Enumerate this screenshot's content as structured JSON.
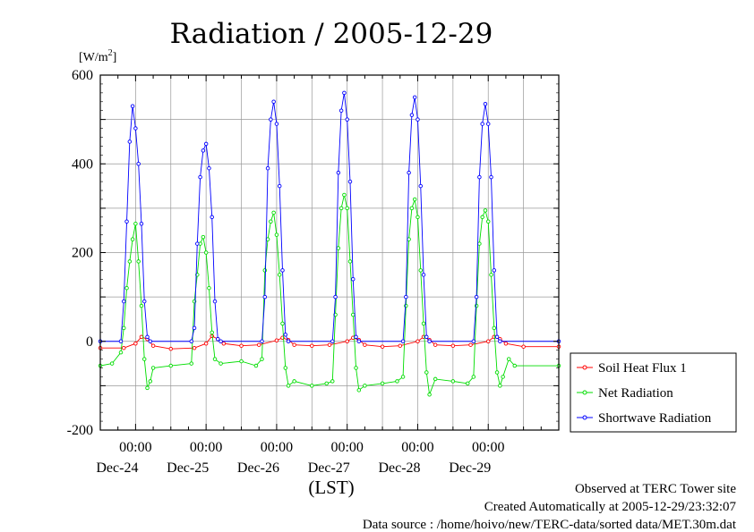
{
  "chart_data": {
    "type": "line",
    "title": "Radiation / 2005-12-29",
    "ylabel": "",
    "y_unit": "[W/m2]",
    "ylim": [
      -200,
      600
    ],
    "y_ticks": [
      -200,
      0,
      200,
      400,
      600
    ],
    "xlim": [
      "2005-12-23T12:00",
      "2005-12-30T00:00"
    ],
    "x_ticks": [
      {
        "time": "00:00",
        "date": "Dec-24"
      },
      {
        "time": "00:00",
        "date": "Dec-25"
      },
      {
        "time": "00:00",
        "date": "Dec-26"
      },
      {
        "time": "00:00",
        "date": "Dec-27"
      },
      {
        "time": "00:00",
        "date": "Dec-28"
      },
      {
        "time": "00:00",
        "date": "Dec-29"
      }
    ],
    "xlabel": "(LST)",
    "grid": true,
    "legend_position": "right",
    "series": [
      {
        "name": "Soil Heat Flux 1",
        "color": "#ff0000",
        "marker": "circle",
        "points": [
          [
            "2005-12-23T12:00",
            -15
          ],
          [
            "2005-12-23T20:00",
            -15
          ],
          [
            "2005-12-24T00:00",
            -5
          ],
          [
            "2005-12-24T02:00",
            10
          ],
          [
            "2005-12-24T04:00",
            5
          ],
          [
            "2005-12-24T06:00",
            -10
          ],
          [
            "2005-12-24T12:00",
            -17
          ],
          [
            "2005-12-24T20:00",
            -15
          ],
          [
            "2005-12-25T00:00",
            -5
          ],
          [
            "2005-12-25T02:00",
            12
          ],
          [
            "2005-12-25T04:00",
            5
          ],
          [
            "2005-12-25T06:00",
            -5
          ],
          [
            "2005-12-25T12:00",
            -10
          ],
          [
            "2005-12-25T18:00",
            -8
          ],
          [
            "2005-12-26T00:00",
            2
          ],
          [
            "2005-12-26T02:00",
            8
          ],
          [
            "2005-12-26T04:00",
            3
          ],
          [
            "2005-12-26T06:00",
            -8
          ],
          [
            "2005-12-26T12:00",
            -10
          ],
          [
            "2005-12-26T18:00",
            -8
          ],
          [
            "2005-12-27T00:00",
            0
          ],
          [
            "2005-12-27T02:00",
            8
          ],
          [
            "2005-12-27T04:00",
            3
          ],
          [
            "2005-12-27T06:00",
            -8
          ],
          [
            "2005-12-27T12:00",
            -12
          ],
          [
            "2005-12-27T18:00",
            -10
          ],
          [
            "2005-12-28T00:00",
            0
          ],
          [
            "2005-12-28T02:00",
            10
          ],
          [
            "2005-12-28T04:00",
            3
          ],
          [
            "2005-12-28T06:00",
            -8
          ],
          [
            "2005-12-28T12:00",
            -10
          ],
          [
            "2005-12-28T18:00",
            -8
          ],
          [
            "2005-12-29T00:00",
            0
          ],
          [
            "2005-12-29T02:00",
            10
          ],
          [
            "2005-12-29T04:00",
            5
          ],
          [
            "2005-12-29T06:00",
            -5
          ],
          [
            "2005-12-29T12:00",
            -12
          ],
          [
            "2005-12-30T00:00",
            -12
          ]
        ]
      },
      {
        "name": "Net Radiation",
        "color": "#00dd00",
        "marker": "circle",
        "points": [
          [
            "2005-12-23T12:00",
            -55
          ],
          [
            "2005-12-23T16:00",
            -50
          ],
          [
            "2005-12-23T19:00",
            -25
          ],
          [
            "2005-12-23T20:00",
            30
          ],
          [
            "2005-12-23T21:00",
            120
          ],
          [
            "2005-12-23T22:00",
            180
          ],
          [
            "2005-12-23T23:00",
            230
          ],
          [
            "2005-12-24T00:00",
            265
          ],
          [
            "2005-12-24T01:00",
            180
          ],
          [
            "2005-12-24T02:00",
            80
          ],
          [
            "2005-12-24T03:00",
            -40
          ],
          [
            "2005-12-24T04:00",
            -105
          ],
          [
            "2005-12-24T05:00",
            -90
          ],
          [
            "2005-12-24T06:00",
            -60
          ],
          [
            "2005-12-24T12:00",
            -55
          ],
          [
            "2005-12-24T19:00",
            -50
          ],
          [
            "2005-12-24T20:00",
            90
          ],
          [
            "2005-12-24T21:00",
            150
          ],
          [
            "2005-12-24T22:00",
            220
          ],
          [
            "2005-12-24T23:00",
            235
          ],
          [
            "2005-12-25T00:00",
            200
          ],
          [
            "2005-12-25T01:00",
            120
          ],
          [
            "2005-12-25T02:00",
            20
          ],
          [
            "2005-12-25T03:00",
            -40
          ],
          [
            "2005-12-25T05:00",
            -50
          ],
          [
            "2005-12-25T12:00",
            -45
          ],
          [
            "2005-12-25T17:00",
            -55
          ],
          [
            "2005-12-25T19:00",
            -40
          ],
          [
            "2005-12-25T20:00",
            160
          ],
          [
            "2005-12-25T21:00",
            230
          ],
          [
            "2005-12-25T22:00",
            270
          ],
          [
            "2005-12-25T23:00",
            290
          ],
          [
            "2005-12-26T00:00",
            240
          ],
          [
            "2005-12-26T01:00",
            150
          ],
          [
            "2005-12-26T02:00",
            40
          ],
          [
            "2005-12-26T03:00",
            -60
          ],
          [
            "2005-12-26T04:00",
            -100
          ],
          [
            "2005-12-26T06:00",
            -90
          ],
          [
            "2005-12-26T12:00",
            -100
          ],
          [
            "2005-12-26T17:00",
            -95
          ],
          [
            "2005-12-26T19:00",
            -90
          ],
          [
            "2005-12-26T20:00",
            60
          ],
          [
            "2005-12-26T21:00",
            210
          ],
          [
            "2005-12-26T22:00",
            300
          ],
          [
            "2005-12-26T23:00",
            330
          ],
          [
            "2005-12-27T00:00",
            300
          ],
          [
            "2005-12-27T01:00",
            180
          ],
          [
            "2005-12-27T02:00",
            60
          ],
          [
            "2005-12-27T03:00",
            -60
          ],
          [
            "2005-12-27T04:00",
            -110
          ],
          [
            "2005-12-27T06:00",
            -100
          ],
          [
            "2005-12-27T12:00",
            -95
          ],
          [
            "2005-12-27T17:00",
            -90
          ],
          [
            "2005-12-27T19:00",
            -80
          ],
          [
            "2005-12-27T20:00",
            80
          ],
          [
            "2005-12-27T21:00",
            230
          ],
          [
            "2005-12-27T22:00",
            300
          ],
          [
            "2005-12-27T23:00",
            320
          ],
          [
            "2005-12-28T00:00",
            280
          ],
          [
            "2005-12-28T01:00",
            160
          ],
          [
            "2005-12-28T02:00",
            40
          ],
          [
            "2005-12-28T03:00",
            -70
          ],
          [
            "2005-12-28T04:00",
            -120
          ],
          [
            "2005-12-28T06:00",
            -85
          ],
          [
            "2005-12-28T12:00",
            -90
          ],
          [
            "2005-12-28T17:00",
            -95
          ],
          [
            "2005-12-28T19:00",
            -80
          ],
          [
            "2005-12-28T20:00",
            80
          ],
          [
            "2005-12-28T21:00",
            220
          ],
          [
            "2005-12-28T22:00",
            280
          ],
          [
            "2005-12-28T23:00",
            295
          ],
          [
            "2005-12-29T00:00",
            270
          ],
          [
            "2005-12-29T01:00",
            150
          ],
          [
            "2005-12-29T02:00",
            30
          ],
          [
            "2005-12-29T03:00",
            -70
          ],
          [
            "2005-12-29T04:00",
            -100
          ],
          [
            "2005-12-29T05:00",
            -80
          ],
          [
            "2005-12-29T07:00",
            -40
          ],
          [
            "2005-12-29T09:00",
            -55
          ],
          [
            "2005-12-30T00:00",
            -55
          ]
        ]
      },
      {
        "name": "Shortwave Radiation",
        "color": "#0000ff",
        "marker": "circle",
        "points": [
          [
            "2005-12-23T12:00",
            0
          ],
          [
            "2005-12-23T19:00",
            0
          ],
          [
            "2005-12-23T20:00",
            90
          ],
          [
            "2005-12-23T21:00",
            270
          ],
          [
            "2005-12-23T22:00",
            450
          ],
          [
            "2005-12-23T23:00",
            530
          ],
          [
            "2005-12-24T00:00",
            480
          ],
          [
            "2005-12-24T01:00",
            400
          ],
          [
            "2005-12-24T02:00",
            265
          ],
          [
            "2005-12-24T03:00",
            90
          ],
          [
            "2005-12-24T04:00",
            10
          ],
          [
            "2005-12-24T05:00",
            0
          ],
          [
            "2005-12-24T19:00",
            0
          ],
          [
            "2005-12-24T20:00",
            30
          ],
          [
            "2005-12-24T21:00",
            220
          ],
          [
            "2005-12-24T22:00",
            370
          ],
          [
            "2005-12-24T23:00",
            430
          ],
          [
            "2005-12-25T00:00",
            445
          ],
          [
            "2005-12-25T01:00",
            390
          ],
          [
            "2005-12-25T02:00",
            280
          ],
          [
            "2005-12-25T03:00",
            90
          ],
          [
            "2005-12-25T04:00",
            5
          ],
          [
            "2005-12-25T05:00",
            0
          ],
          [
            "2005-12-25T19:00",
            0
          ],
          [
            "2005-12-25T20:00",
            100
          ],
          [
            "2005-12-25T21:00",
            390
          ],
          [
            "2005-12-25T22:00",
            500
          ],
          [
            "2005-12-25T23:00",
            540
          ],
          [
            "2005-12-26T00:00",
            490
          ],
          [
            "2005-12-26T01:00",
            350
          ],
          [
            "2005-12-26T02:00",
            160
          ],
          [
            "2005-12-26T03:00",
            15
          ],
          [
            "2005-12-26T04:00",
            0
          ],
          [
            "2005-12-26T19:00",
            0
          ],
          [
            "2005-12-26T20:00",
            100
          ],
          [
            "2005-12-26T21:00",
            380
          ],
          [
            "2005-12-26T22:00",
            520
          ],
          [
            "2005-12-26T23:00",
            560
          ],
          [
            "2005-12-27T00:00",
            500
          ],
          [
            "2005-12-27T01:00",
            360
          ],
          [
            "2005-12-27T02:00",
            140
          ],
          [
            "2005-12-27T03:00",
            10
          ],
          [
            "2005-12-27T04:00",
            0
          ],
          [
            "2005-12-27T19:00",
            0
          ],
          [
            "2005-12-27T20:00",
            100
          ],
          [
            "2005-12-27T21:00",
            380
          ],
          [
            "2005-12-27T22:00",
            510
          ],
          [
            "2005-12-27T23:00",
            550
          ],
          [
            "2005-12-28T00:00",
            500
          ],
          [
            "2005-12-28T01:00",
            350
          ],
          [
            "2005-12-28T02:00",
            150
          ],
          [
            "2005-12-28T03:00",
            10
          ],
          [
            "2005-12-28T04:00",
            0
          ],
          [
            "2005-12-28T19:00",
            0
          ],
          [
            "2005-12-28T20:00",
            100
          ],
          [
            "2005-12-28T21:00",
            370
          ],
          [
            "2005-12-28T22:00",
            490
          ],
          [
            "2005-12-28T23:00",
            535
          ],
          [
            "2005-12-29T00:00",
            490
          ],
          [
            "2005-12-29T01:00",
            370
          ],
          [
            "2005-12-29T02:00",
            160
          ],
          [
            "2005-12-29T03:00",
            10
          ],
          [
            "2005-12-29T04:00",
            0
          ],
          [
            "2005-12-30T00:00",
            0
          ]
        ]
      }
    ]
  },
  "footer": {
    "line1": "Observed at TERC Tower site",
    "line2": "Created Automatically at 2005-12-29/23:32:07",
    "line3": "Data source : /home/hoivo/new/TERC-data/sorted  data/MET.30m.dat"
  }
}
